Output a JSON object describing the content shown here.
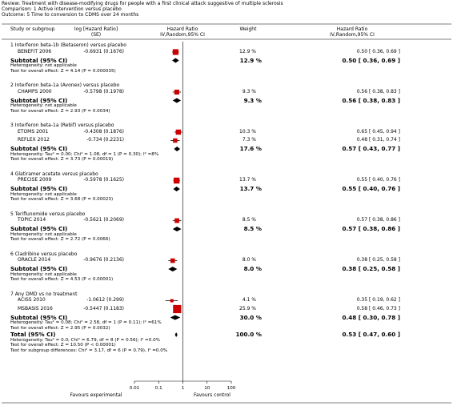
{
  "header": {
    "review": "Review:  Treatment with disease-modifying drugs for people with a first clinical attack suggestive of multiple sclerosis",
    "comparison": "Comparison:  1 Active intervention versus placebo",
    "outcome": "Outcome:  5 Time to conversion to CDMS over 24 months"
  },
  "columns": {
    "study": "Study or subgroup",
    "loghr_line1": "log [Hazard Ratio]",
    "loghr_line2": "(SE)",
    "plot_line1": "Hazard Ratio",
    "plot_line2": "IV,Random,95% CI",
    "weight": "Weight",
    "hr_line1": "Hazard Ratio",
    "hr_line2": "IV,Random,95% CI"
  },
  "groups": [
    {
      "title": "1 Interferon beta-1b (Betaseron) versus placebo",
      "studies": [
        {
          "name": "BENEFIT 2006",
          "loghr": "-0.6931 (0.1676)",
          "weight": "12.9 %",
          "hrci": "0.50 [ 0.36, 0.69 ]",
          "hr": 0.5,
          "lo": 0.36,
          "hi": 0.69,
          "w": 12.9
        }
      ],
      "subtotal": {
        "label": "Subtotal (95% CI)",
        "weight": "12.9 %",
        "hrci": "0.50 [ 0.36, 0.69 ]",
        "hr": 0.5,
        "lo": 0.36,
        "hi": 0.69
      },
      "notes": [
        "Heterogeneity: not applicable",
        "Test for overall effect: Z = 4.14 (P = 0.000035)"
      ]
    },
    {
      "title": "2 Interferon beta-1a (Avonex) versus placebo",
      "studies": [
        {
          "name": "CHAMPS 2000",
          "loghr": "-0.5798 (0.1978)",
          "weight": "9.3 %",
          "hrci": "0.56 [ 0.38, 0.83 ]",
          "hr": 0.56,
          "lo": 0.38,
          "hi": 0.83,
          "w": 9.3
        }
      ],
      "subtotal": {
        "label": "Subtotal (95% CI)",
        "weight": "9.3 %",
        "hrci": "0.56 [ 0.38, 0.83 ]",
        "hr": 0.56,
        "lo": 0.38,
        "hi": 0.83
      },
      "notes": [
        "Heterogeneity: not applicable",
        "Test for overall effect: Z = 2.93 (P = 0.0034)"
      ]
    },
    {
      "title": "3 Interferon beta-1a (Rebif) versus placebo",
      "studies": [
        {
          "name": "ETOMS 2001",
          "loghr": "-0.4308 (0.1876)",
          "weight": "10.3 %",
          "hrci": "0.65 [ 0.45, 0.94 ]",
          "hr": 0.65,
          "lo": 0.45,
          "hi": 0.94,
          "w": 10.3
        },
        {
          "name": "REFLEX 2012",
          "loghr": "-0.734 (0.2231)",
          "weight": "7.3 %",
          "hrci": "0.48 [ 0.31, 0.74 ]",
          "hr": 0.48,
          "lo": 0.31,
          "hi": 0.74,
          "w": 7.3
        }
      ],
      "subtotal": {
        "label": "Subtotal (95% CI)",
        "weight": "17.6 %",
        "hrci": "0.57 [ 0.43, 0.77 ]",
        "hr": 0.57,
        "lo": 0.43,
        "hi": 0.77
      },
      "notes": [
        "Heterogeneity: Tau² = 0.00; Chi² = 1.08, df = 1 (P = 0.30); I² =8%",
        "Test for overall effect: Z = 3.73 (P = 0.00019)"
      ]
    },
    {
      "title": "4 Glatiramer acetate versus placebo",
      "studies": [
        {
          "name": "PRECISE 2009",
          "loghr": "-0.5978 (0.1625)",
          "weight": "13.7 %",
          "hrci": "0.55 [ 0.40, 0.76 ]",
          "hr": 0.55,
          "lo": 0.4,
          "hi": 0.76,
          "w": 13.7
        }
      ],
      "subtotal": {
        "label": "Subtotal (95% CI)",
        "weight": "13.7 %",
        "hrci": "0.55 [ 0.40, 0.76 ]",
        "hr": 0.55,
        "lo": 0.4,
        "hi": 0.76
      },
      "notes": [
        "Heterogeneity: not applicable",
        "Test for overall effect: Z = 3.68 (P = 0.00023)"
      ]
    },
    {
      "title": "5 Teriflunomide versus placebo",
      "studies": [
        {
          "name": "TOPIC 2014",
          "loghr": "-0.5621 (0.2069)",
          "weight": "8.5 %",
          "hrci": "0.57 [ 0.38, 0.86 ]",
          "hr": 0.57,
          "lo": 0.38,
          "hi": 0.86,
          "w": 8.5
        }
      ],
      "subtotal": {
        "label": "Subtotal (95% CI)",
        "weight": "8.5 %",
        "hrci": "0.57 [ 0.38, 0.86 ]",
        "hr": 0.57,
        "lo": 0.38,
        "hi": 0.86
      },
      "notes": [
        "Heterogeneity: not applicable",
        "Test for overall effect: Z = 2.72 (P = 0.0066)"
      ]
    },
    {
      "title": "6 Cladribine versus placebo",
      "studies": [
        {
          "name": "ORACLE 2014",
          "loghr": "-0.9676 (0.2136)",
          "weight": "8.0 %",
          "hrci": "0.38 [ 0.25, 0.58 ]",
          "hr": 0.38,
          "lo": 0.25,
          "hi": 0.58,
          "w": 8.0
        }
      ],
      "subtotal": {
        "label": "Subtotal (95% CI)",
        "weight": "8.0 %",
        "hrci": "0.38 [ 0.25, 0.58 ]",
        "hr": 0.38,
        "lo": 0.25,
        "hi": 0.58
      },
      "notes": [
        "Heterogeneity: not applicable",
        "Test for overall effect: Z = 4.53 (P < 0.00001)"
      ]
    },
    {
      "title": "7 Any DMD vs no treatment",
      "studies": [
        {
          "name": "ACISS 2010",
          "loghr": "-1.0612 (0.299)",
          "weight": "4.1 %",
          "hrci": "0.35 [ 0.19, 0.62 ]",
          "hr": 0.35,
          "lo": 0.19,
          "hi": 0.62,
          "w": 4.1
        },
        {
          "name": "MSBASIS 2016",
          "loghr": "-0.5447 (0.1183)",
          "weight": "25.9 %",
          "hrci": "0.58 [ 0.46, 0.73 ]",
          "hr": 0.58,
          "lo": 0.46,
          "hi": 0.73,
          "w": 25.9
        }
      ],
      "subtotal": {
        "label": "Subtotal (95% CI)",
        "weight": "30.0 %",
        "hrci": "0.48 [ 0.30, 0.78 ]",
        "hr": 0.48,
        "lo": 0.3,
        "hi": 0.78
      },
      "notes": [
        "Heterogeneity: Tau² = 0.08; Chi² = 2.58, df = 1 (P = 0.11); I² =61%",
        "Test for overall effect: Z = 2.95 (P = 0.0032)"
      ]
    }
  ],
  "total": {
    "label": "Total (95% CI)",
    "weight": "100.0 %",
    "hrci": "0.53 [ 0.47, 0.60 ]",
    "hr": 0.53,
    "lo": 0.47,
    "hi": 0.6,
    "notes": [
      "Heterogeneity: Tau² = 0.0; Chi² = 6.79, df = 8 (P = 0.56); I² =0.0%",
      "Test for overall effect: Z = 10.50 (P < 0.00001)",
      "Test for subgroup differences: Chi² = 3.17, df = 6 (P = 0.79), I² =0.0%"
    ]
  },
  "axis": {
    "ticks": [
      0.01,
      0.1,
      1,
      10,
      100
    ],
    "tick_labels": [
      "0.01",
      "0.1",
      "1",
      "10",
      "100"
    ],
    "left_label": "Favours experimental",
    "right_label": "Favours control"
  },
  "colors": {
    "marker": "#cc0000",
    "diamond": "#000000",
    "line": "#000000"
  },
  "chart_data": {
    "type": "forest",
    "xscale": "log",
    "xlim": [
      0.01,
      100
    ],
    "effect_measure": "Hazard Ratio",
    "studies": [
      {
        "name": "BENEFIT 2006",
        "hr": 0.5,
        "ci": [
          0.36,
          0.69
        ],
        "weight": 12.9
      },
      {
        "name": "CHAMPS 2000",
        "hr": 0.56,
        "ci": [
          0.38,
          0.83
        ],
        "weight": 9.3
      },
      {
        "name": "ETOMS 2001",
        "hr": 0.65,
        "ci": [
          0.45,
          0.94
        ],
        "weight": 10.3
      },
      {
        "name": "REFLEX 2012",
        "hr": 0.48,
        "ci": [
          0.31,
          0.74
        ],
        "weight": 7.3
      },
      {
        "name": "PRECISE 2009",
        "hr": 0.55,
        "ci": [
          0.4,
          0.76
        ],
        "weight": 13.7
      },
      {
        "name": "TOPIC 2014",
        "hr": 0.57,
        "ci": [
          0.38,
          0.86
        ],
        "weight": 8.5
      },
      {
        "name": "ORACLE 2014",
        "hr": 0.38,
        "ci": [
          0.25,
          0.58
        ],
        "weight": 8.0
      },
      {
        "name": "ACISS 2010",
        "hr": 0.35,
        "ci": [
          0.19,
          0.62
        ],
        "weight": 4.1
      },
      {
        "name": "MSBASIS 2016",
        "hr": 0.58,
        "ci": [
          0.46,
          0.73
        ],
        "weight": 25.9
      }
    ],
    "total": {
      "hr": 0.53,
      "ci": [
        0.47,
        0.6
      ],
      "weight": 100.0
    }
  }
}
